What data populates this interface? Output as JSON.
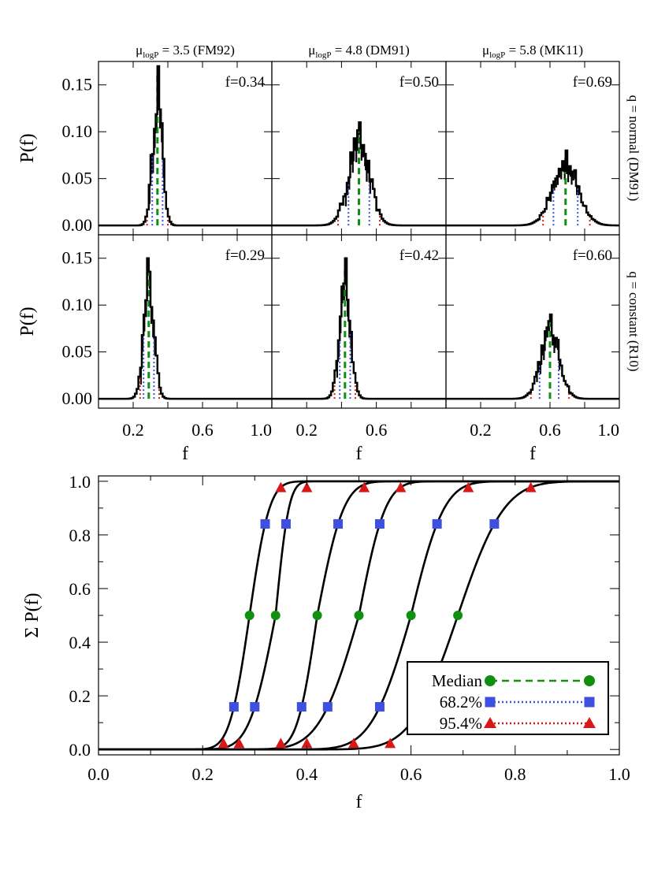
{
  "column_titles": [
    {
      "sym": "μ",
      "sub": "logP",
      "rest": " = 3.5 (FM92)"
    },
    {
      "sym": "μ",
      "sub": "logP",
      "rest": " = 4.8 (DM91)"
    },
    {
      "sym": "μ",
      "sub": "logP",
      "rest": " = 5.8 (MK11)"
    }
  ],
  "row_labels": [
    "q = normal (DM91)",
    "q = constant (R10)"
  ],
  "colors": {
    "median": "#109010",
    "sigma1": "#3f4fe0",
    "sigma2": "#d81818",
    "hist": "#000000"
  },
  "chart_data": [
    {
      "type": "histogram",
      "panel": "top",
      "ylabel": "P(f)",
      "xlabel": "f",
      "xlim": [
        0.0,
        1.0
      ],
      "ylim": [
        -0.01,
        0.175
      ],
      "yticks": [
        "0.15",
        "0.10",
        "0.05",
        "0.00"
      ],
      "ytick_values": [
        0.15,
        0.1,
        0.05,
        0.0
      ],
      "xticks": [
        [
          "0.2",
          "0.6",
          "1.0"
        ],
        [
          "0.2",
          "0.6"
        ],
        [
          "0.2",
          "0.6",
          "1.0"
        ]
      ],
      "xtick_values": [
        [
          0.2,
          0.6,
          1.0
        ],
        [
          0.2,
          0.6
        ],
        [
          0.2,
          0.6,
          1.0
        ]
      ],
      "panels": [
        {
          "label": "f=0.34",
          "median": 0.34,
          "sigma": 0.028,
          "peak": 0.17,
          "ci68": [
            0.31,
            0.37
          ],
          "ci95": [
            0.28,
            0.4
          ]
        },
        {
          "label": "f=0.50",
          "median": 0.5,
          "sigma": 0.06,
          "peak": 0.11,
          "ci68": [
            0.44,
            0.56
          ],
          "ci95": [
            0.38,
            0.62
          ]
        },
        {
          "label": "f=0.69",
          "median": 0.69,
          "sigma": 0.075,
          "peak": 0.08,
          "ci68": [
            0.62,
            0.76
          ],
          "ci95": [
            0.56,
            0.83
          ]
        },
        {
          "label": "f=0.29",
          "median": 0.29,
          "sigma": 0.03,
          "peak": 0.15,
          "ci68": [
            0.26,
            0.32
          ],
          "ci95": [
            0.24,
            0.35
          ]
        },
        {
          "label": "f=0.42",
          "median": 0.42,
          "sigma": 0.032,
          "peak": 0.15,
          "ci68": [
            0.39,
            0.45
          ],
          "ci95": [
            0.36,
            0.48
          ]
        },
        {
          "label": "f=0.60",
          "median": 0.6,
          "sigma": 0.055,
          "peak": 0.09,
          "ci68": [
            0.54,
            0.65
          ],
          "ci95": [
            0.49,
            0.71
          ]
        }
      ]
    },
    {
      "type": "line",
      "panel": "bottom",
      "ylabel": "Σ P(f)",
      "xlabel": "f",
      "xlim": [
        0.0,
        1.0
      ],
      "ylim": [
        -0.02,
        1.02
      ],
      "xticks": [
        "0.0",
        "0.2",
        "0.4",
        "0.6",
        "0.8",
        "1.0"
      ],
      "xtick_values": [
        0.0,
        0.2,
        0.4,
        0.6,
        0.8,
        1.0
      ],
      "yticks": [
        "0.0",
        "0.2",
        "0.4",
        "0.6",
        "0.8",
        "1.0"
      ],
      "ytick_values": [
        0.0,
        0.2,
        0.4,
        0.6,
        0.8,
        1.0
      ],
      "cdf_levels": {
        "lower95": 0.023,
        "lower68": 0.159,
        "median": 0.5,
        "upper68": 0.841,
        "upper95": 0.977
      },
      "series": [
        {
          "median": 0.29,
          "lo68": 0.26,
          "hi68": 0.32,
          "lo95": 0.24,
          "hi95": 0.35
        },
        {
          "median": 0.34,
          "lo68": 0.3,
          "hi68": 0.36,
          "lo95": 0.27,
          "hi95": 0.4
        },
        {
          "median": 0.42,
          "lo68": 0.39,
          "hi68": 0.46,
          "lo95": 0.35,
          "hi95": 0.51
        },
        {
          "median": 0.5,
          "lo68": 0.44,
          "hi68": 0.54,
          "lo95": 0.4,
          "hi95": 0.58
        },
        {
          "median": 0.6,
          "lo68": 0.54,
          "hi68": 0.65,
          "lo95": 0.49,
          "hi95": 0.71
        },
        {
          "median": 0.69,
          "lo68": 0.62,
          "hi68": 0.76,
          "lo95": 0.56,
          "hi95": 0.83
        }
      ],
      "legend": {
        "position": "lower-right",
        "entries": [
          {
            "label": "Median",
            "marker": "circle",
            "style": "dashed",
            "color_key": "median"
          },
          {
            "label": "68.2%",
            "marker": "square",
            "style": "dotted",
            "color_key": "sigma1"
          },
          {
            "label": "95.4%",
            "marker": "triangle",
            "style": "dotted",
            "color_key": "sigma2"
          }
        ]
      }
    }
  ]
}
